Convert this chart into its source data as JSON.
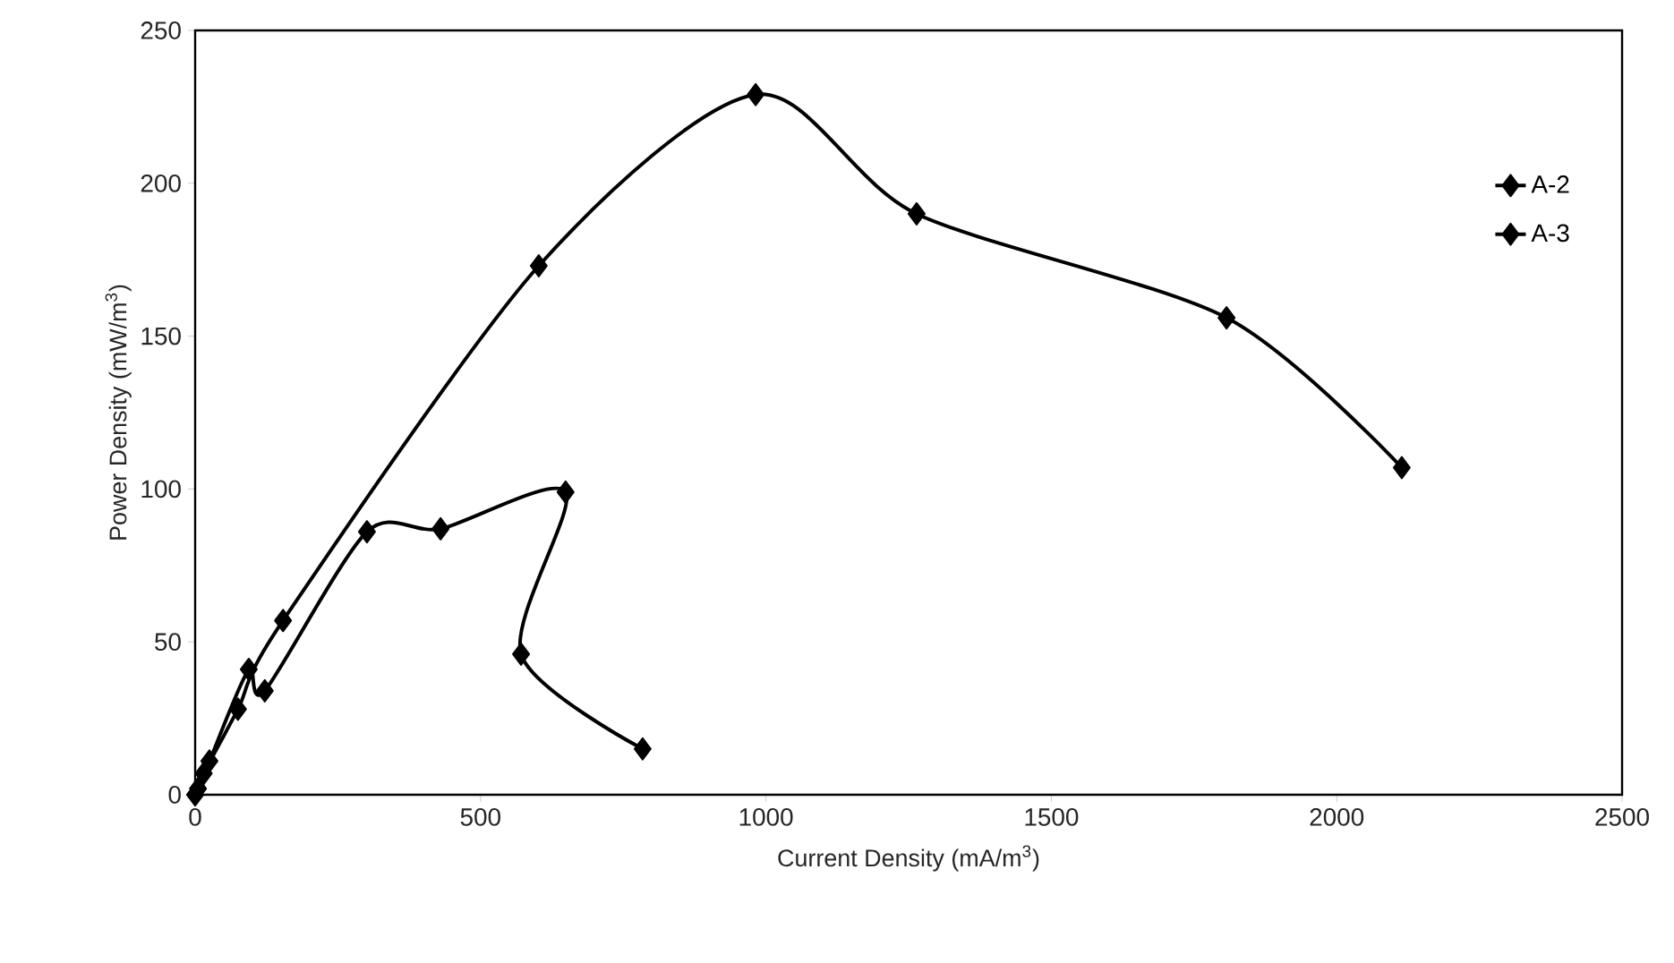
{
  "chart_data": {
    "type": "line",
    "xlabel": "Current Density (mA/m$^{3}$)",
    "ylabel": "Power Density (mW/m$^{3}$)",
    "xlim": [
      0,
      2500
    ],
    "xticks": [
      0,
      500,
      1000,
      1500,
      2000,
      2500
    ],
    "ylim": [
      0,
      250
    ],
    "yticks": [
      0,
      50,
      100,
      150,
      200,
      250
    ],
    "legend": "top right",
    "marker": "diamond",
    "line_style": "solid",
    "series": [
      {
        "name": "A-2",
        "color": "#000000",
        "x": [
          0,
          25,
          94,
          122,
          301,
          430,
          649,
          571,
          784
        ],
        "values": [
          0,
          11,
          41,
          34,
          86,
          87,
          99,
          46,
          15
        ]
      },
      {
        "name": "A-3",
        "color": "#000000",
        "x": [
          0,
          5,
          15,
          75,
          154,
          602,
          982,
          1264,
          1807,
          2114
        ],
        "values": [
          0,
          2,
          7,
          28,
          57,
          173,
          229,
          190,
          156,
          107
        ]
      }
    ]
  }
}
